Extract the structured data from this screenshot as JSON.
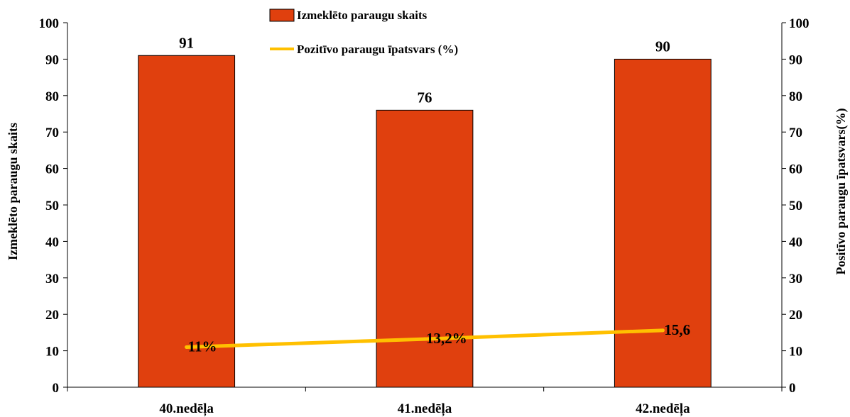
{
  "chart_data": {
    "type": "bar",
    "categories": [
      "40.nedēļa",
      "41.nedēļa",
      "42.nedēļa"
    ],
    "series": [
      {
        "name": "Izmeklēto paraugu skaits",
        "type": "bar",
        "axis": "left",
        "color": "#E0400E",
        "values": [
          91,
          76,
          90
        ],
        "data_labels": [
          "91",
          "76",
          "90"
        ]
      },
      {
        "name": "Pozitīvo paraugu īpatsvars (%)",
        "type": "line",
        "axis": "right",
        "color": "#FFC000",
        "values": [
          11,
          13.2,
          15.6
        ],
        "data_labels": [
          "11%",
          "13,2%",
          "15,6"
        ]
      }
    ],
    "ylabel": "Izmeklēto paraugu skaits",
    "ylabel_right": "Positīvo paraugu īpatsvars(%)",
    "ylim": [
      0,
      100
    ],
    "ylim_right": [
      0,
      100
    ],
    "yticks": [
      "0",
      "10",
      "20",
      "30",
      "40",
      "50",
      "60",
      "70",
      "80",
      "90",
      "100"
    ],
    "grid": false,
    "legend_position": "top-center"
  }
}
